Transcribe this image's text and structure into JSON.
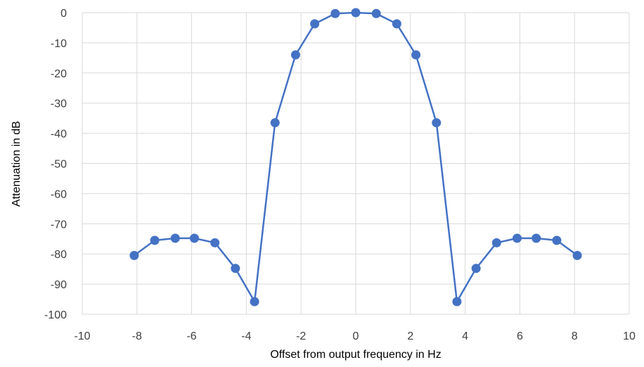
{
  "chart_data": {
    "type": "line",
    "title": "",
    "xlabel": "Offset from output frequency in Hz",
    "ylabel": "Attenuation in dB",
    "xlim": [
      -10,
      10
    ],
    "ylim": [
      -100,
      0
    ],
    "xticks": [
      -10,
      -8,
      -6,
      -4,
      -2,
      0,
      2,
      4,
      6,
      8,
      10
    ],
    "yticks": [
      0,
      -10,
      -20,
      -30,
      -40,
      -50,
      -60,
      -70,
      -80,
      -90,
      -100
    ],
    "grid": "horizontal and vertical",
    "legend": "none",
    "series": [
      {
        "color": "#4472c4",
        "markers": "circle",
        "x": [
          -8.1,
          -7.35,
          -6.6,
          -5.9,
          -5.15,
          -4.4,
          -3.7,
          -2.95,
          -2.2,
          -1.5,
          -0.75,
          0,
          0.75,
          1.5,
          2.2,
          2.95,
          3.7,
          4.4,
          5.15,
          5.9,
          6.6,
          7.35,
          8.1
        ],
        "y": [
          -80.5,
          -75.5,
          -74.8,
          -74.8,
          -76.3,
          -84.8,
          -95.8,
          -36.5,
          -14,
          -3.7,
          -0.3,
          0,
          -0.3,
          -3.7,
          -14,
          -36.5,
          -95.8,
          -84.8,
          -76.3,
          -74.8,
          -74.8,
          -75.5,
          -80.5
        ]
      }
    ]
  }
}
